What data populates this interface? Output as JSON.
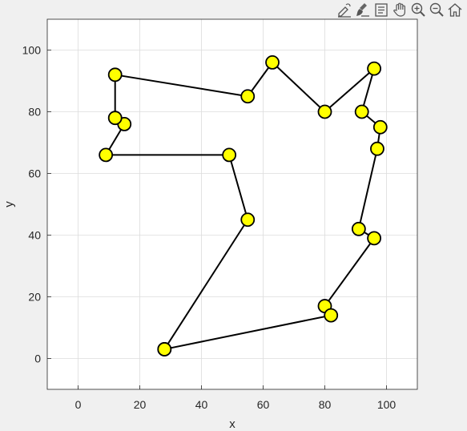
{
  "toolbar": {
    "buttons": [
      {
        "name": "edit-plot-icon"
      },
      {
        "name": "brush-icon"
      },
      {
        "name": "data-tips-icon"
      },
      {
        "name": "pan-hand-icon"
      },
      {
        "name": "zoom-in-icon"
      },
      {
        "name": "zoom-out-icon"
      },
      {
        "name": "home-icon"
      }
    ]
  },
  "colors": {
    "background": "#f0f0f0",
    "axes_background": "#ffffff",
    "grid": "#dcdcdc",
    "line": "#000000",
    "marker_fill": "#ffff00",
    "marker_edge": "#000000",
    "text": "#262626"
  },
  "chart_data": {
    "type": "line",
    "title": "",
    "xlabel": "x",
    "ylabel": "y",
    "xlim": [
      -10,
      110
    ],
    "ylim": [
      -10,
      110
    ],
    "xticks": [
      0,
      20,
      40,
      60,
      80,
      100
    ],
    "yticks": [
      0,
      20,
      40,
      60,
      80,
      100
    ],
    "grid": true,
    "marker": "circle",
    "x": [
      28,
      55,
      49,
      9,
      15,
      12,
      12,
      55,
      63,
      80,
      96,
      92,
      98,
      97,
      91,
      96,
      80,
      82,
      28
    ],
    "y": [
      3,
      45,
      66,
      66,
      76,
      78,
      92,
      85,
      96,
      80,
      94,
      80,
      75,
      68,
      42,
      39,
      17,
      14,
      3
    ]
  }
}
